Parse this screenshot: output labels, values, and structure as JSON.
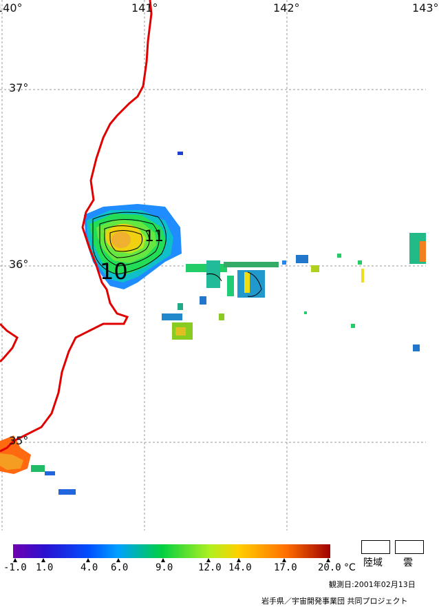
{
  "map": {
    "lon_labels": [
      "140°",
      "141°",
      "142°",
      "143°"
    ],
    "lat_labels": [
      "37°",
      "36°",
      "35°"
    ]
  },
  "color_scale": {
    "ticks": [
      "-1.0",
      "1.0",
      "4.0",
      "6.0",
      "9.0",
      "12.0",
      "14.0",
      "17.0",
      "20.0"
    ],
    "unit": "°C",
    "colors": [
      "#6a00a8",
      "#2020d0",
      "#0060ff",
      "#00b0ff",
      "#00e060",
      "#a0ff20",
      "#ffe000",
      "#ff8000",
      "#e00000",
      "#a00000"
    ]
  },
  "legend": {
    "land_label": "陸域",
    "cloud_label": "雲"
  },
  "contour_labels": [
    "11",
    "10"
  ],
  "footer": {
    "observation_date": "観測日:2001年02月13日",
    "credit": "岩手県／宇宙開発事業団 共同プロジェクト"
  },
  "colors": {
    "coastline": "#e00000",
    "grid": "#9a9a9a"
  }
}
